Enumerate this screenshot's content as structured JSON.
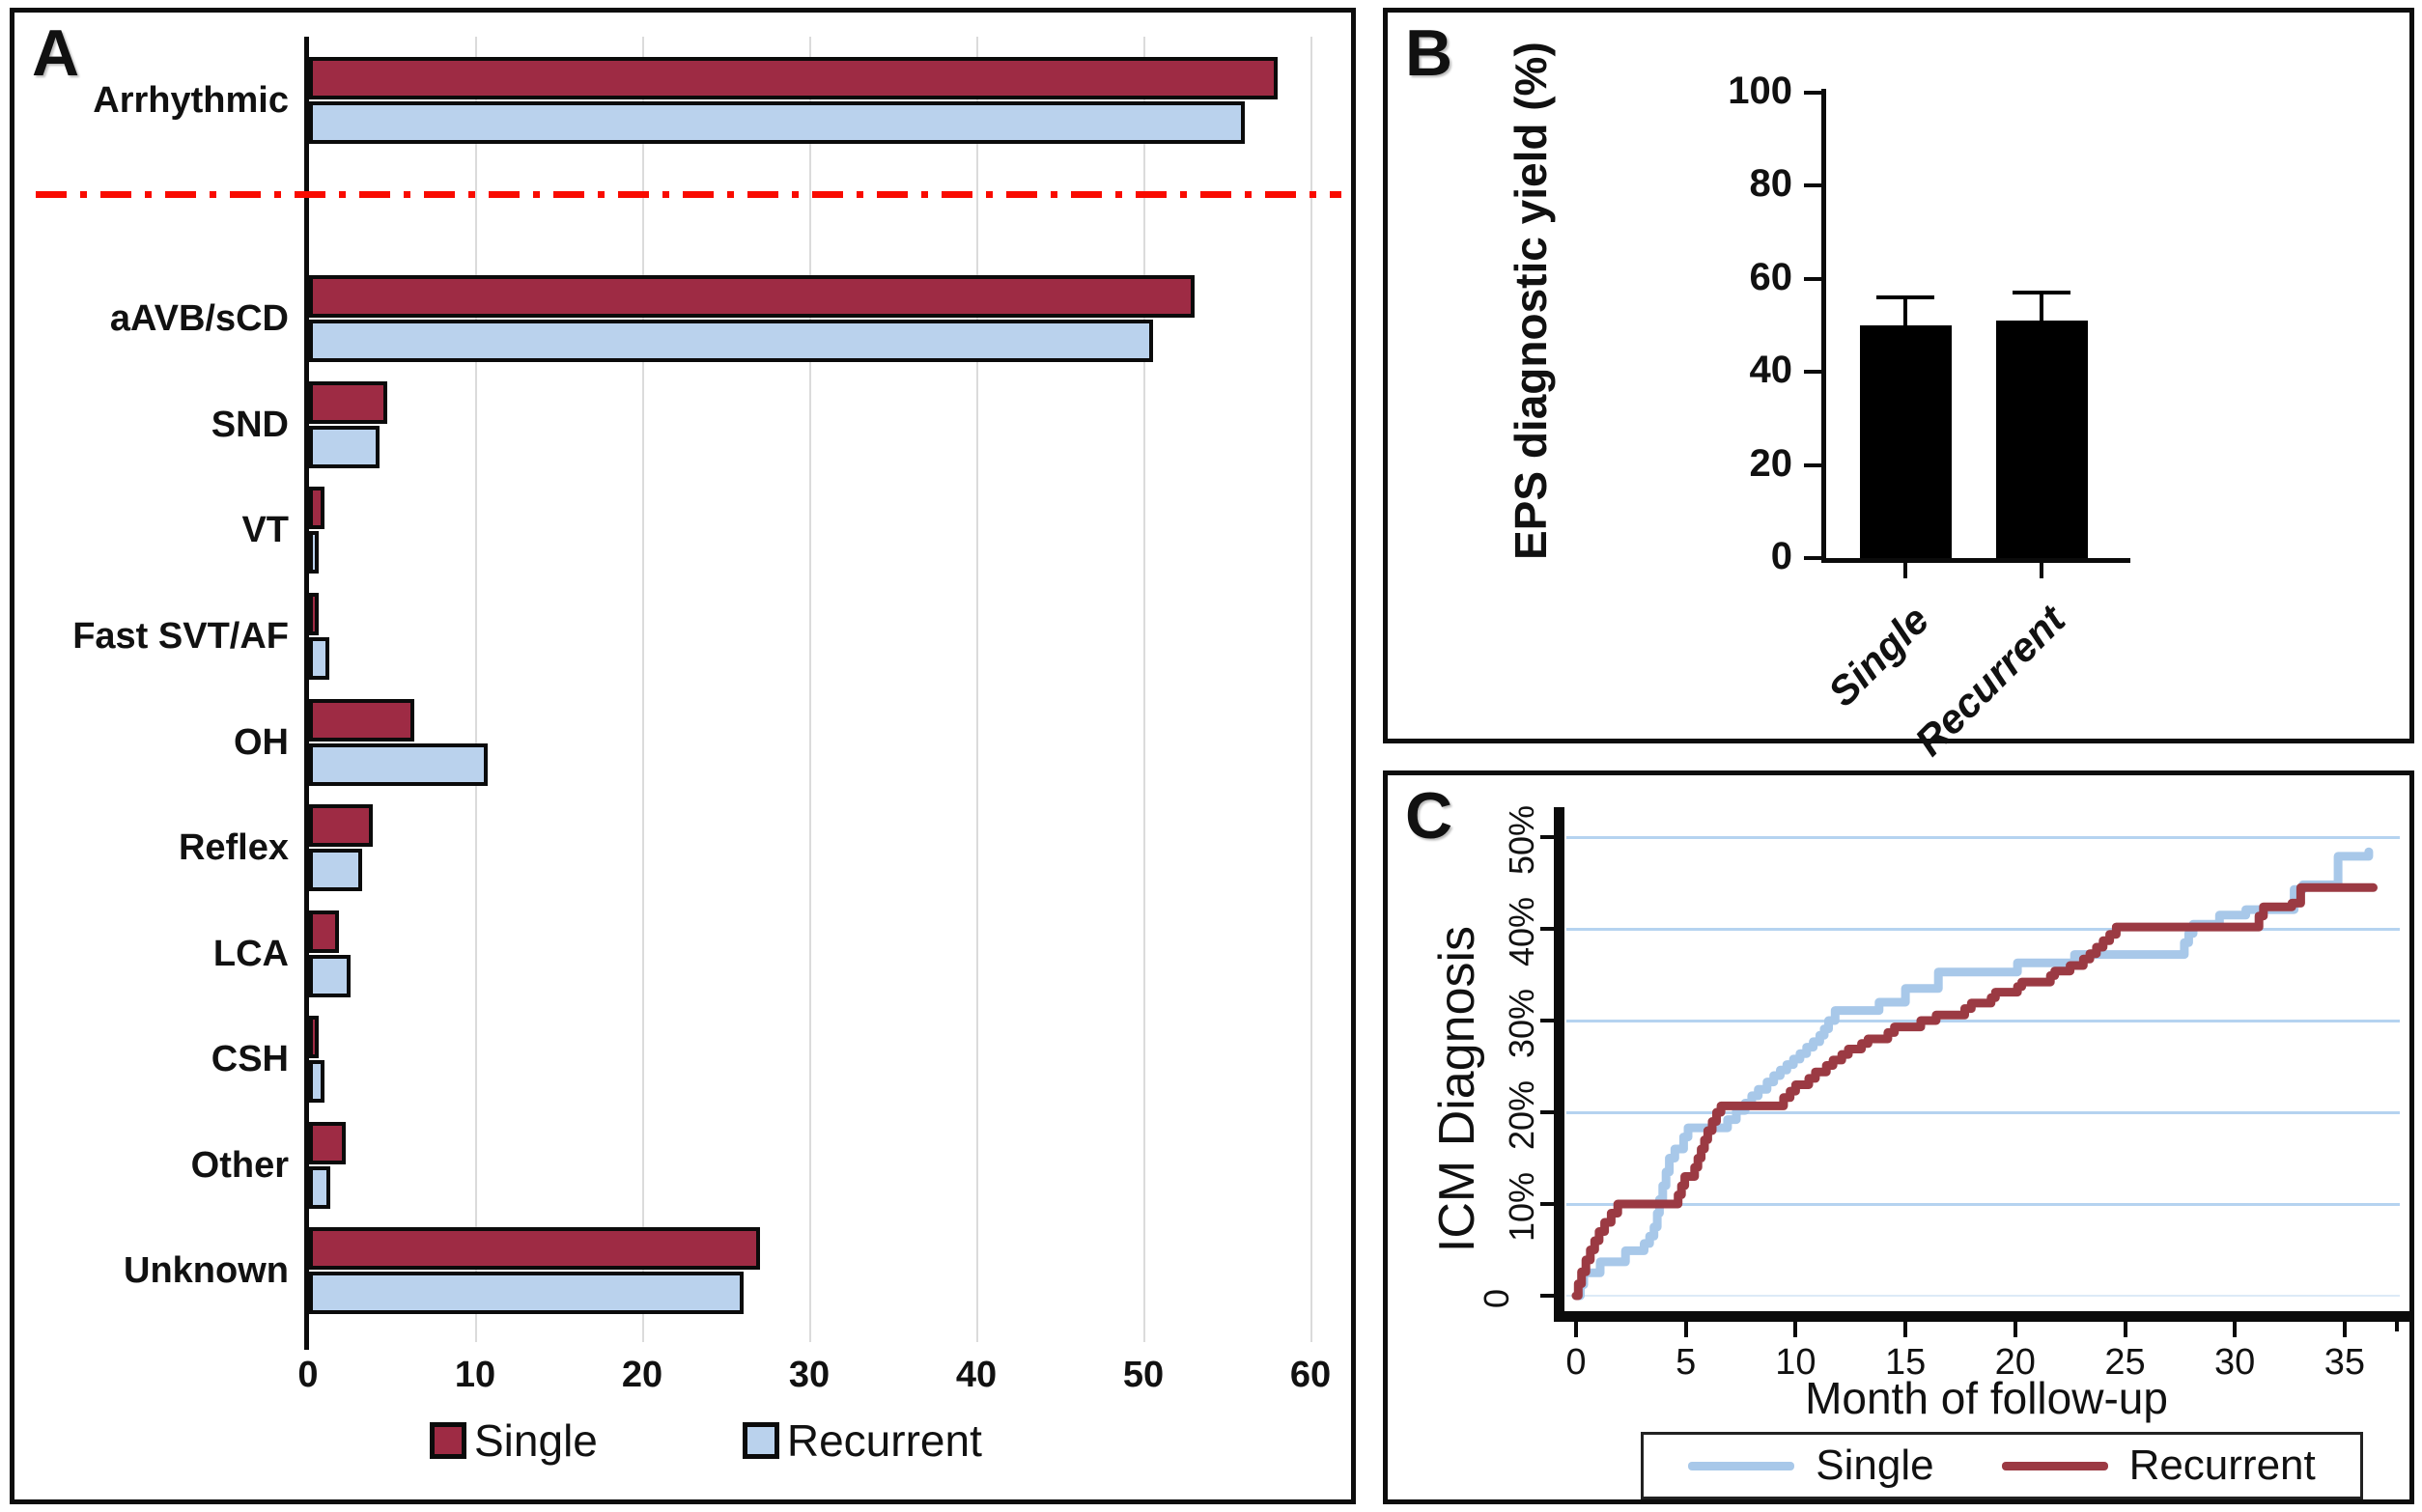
{
  "figure_title": "",
  "chart_data": [
    {
      "id": "A",
      "panel_label": "A",
      "type": "bar",
      "orientation": "horizontal",
      "categories": [
        "Arrhythmic",
        "aAVB/sCD",
        "SND",
        "VT",
        "Fast SVT/AF",
        "OH",
        "Reflex",
        "LCA",
        "CSH",
        "Other",
        "Unknown"
      ],
      "series": [
        {
          "name": "Single",
          "color": "#9E2B44",
          "values": [
            58,
            53,
            4.7,
            0.9,
            0.4,
            6.3,
            3.8,
            1.8,
            0.4,
            2.2,
            27
          ]
        },
        {
          "name": "Recurrent",
          "color": "#BAD2ED",
          "values": [
            56,
            50.5,
            4.2,
            0.5,
            1.2,
            10.7,
            3.2,
            2.5,
            0.9,
            1.3,
            26
          ]
        }
      ],
      "xlim": [
        0,
        60
      ],
      "x_ticks": [
        0,
        10,
        20,
        30,
        40,
        50,
        60
      ],
      "separator": {
        "after_category": "Arrhythmic",
        "color": "#f90b00",
        "style": "dash-dot"
      },
      "grid": "vertical-light-gray",
      "legend_position": "bottom",
      "legend_labels": [
        "Single",
        "Recurrent"
      ]
    },
    {
      "id": "B",
      "panel_label": "B",
      "type": "bar",
      "orientation": "vertical",
      "ylabel": "EPS diagnostic yield (%)",
      "categories": [
        "Single",
        "Recurrent"
      ],
      "values": [
        50,
        51
      ],
      "errors_plus": [
        6.5,
        6.5
      ],
      "bar_color": "#000000",
      "ylim": [
        0,
        100
      ],
      "y_ticks": [
        0,
        20,
        40,
        60,
        80,
        100
      ],
      "grid": "off"
    },
    {
      "id": "C",
      "panel_label": "C",
      "type": "line",
      "step": true,
      "ylabel": "ICM Diagnosis",
      "xlabel": "Month of follow-up",
      "ylim": [
        0,
        53
      ],
      "xlim": [
        -0.3,
        37.4
      ],
      "y_ticks": [
        0,
        10,
        20,
        30,
        40,
        50
      ],
      "y_tick_labels": [
        "0",
        "10%",
        "20%",
        "30%",
        "40%",
        "50%"
      ],
      "x_ticks": [
        0,
        5,
        10,
        15,
        20,
        25,
        30,
        35
      ],
      "grid": "horizontal-light-blue",
      "grid_color": "#b5d3f0",
      "legend_position": "bottom",
      "series": [
        {
          "name": "Single",
          "color": "#a8c8e9",
          "points": [
            [
              0,
              0
            ],
            [
              0.2,
              1.2
            ],
            [
              0.35,
              2.5
            ],
            [
              1.1,
              3.7
            ],
            [
              2.25,
              4.9
            ],
            [
              3.1,
              5.7
            ],
            [
              3.35,
              6.5
            ],
            [
              3.55,
              7.5
            ],
            [
              3.7,
              9
            ],
            [
              3.8,
              10.5
            ],
            [
              3.95,
              12
            ],
            [
              4.1,
              13.5
            ],
            [
              4.25,
              15
            ],
            [
              4.5,
              16
            ],
            [
              4.9,
              17.3
            ],
            [
              5.1,
              18.3
            ],
            [
              6.9,
              19.2
            ],
            [
              7.3,
              20.2
            ],
            [
              7.7,
              21
            ],
            [
              8,
              21.8
            ],
            [
              8.3,
              22.5
            ],
            [
              8.7,
              23.3
            ],
            [
              9,
              24
            ],
            [
              9.3,
              24.6
            ],
            [
              9.6,
              25.2
            ],
            [
              9.9,
              25.8
            ],
            [
              10.2,
              26.4
            ],
            [
              10.5,
              27.1
            ],
            [
              10.8,
              27.7
            ],
            [
              11.1,
              28.4
            ],
            [
              11.3,
              29.1
            ],
            [
              11.5,
              30
            ],
            [
              11.8,
              31.1
            ],
            [
              13.8,
              32
            ],
            [
              15,
              33.5
            ],
            [
              16.5,
              35.3
            ],
            [
              20.1,
              36.3
            ],
            [
              22.7,
              37.2
            ],
            [
              27.7,
              38.5
            ],
            [
              27.9,
              39.5
            ],
            [
              28.1,
              40.5
            ],
            [
              29.3,
              41.5
            ],
            [
              30.5,
              42.1
            ],
            [
              32.7,
              44.3
            ],
            [
              33.1,
              44.8
            ],
            [
              34.7,
              47.9
            ],
            [
              36.1,
              48.4
            ]
          ]
        },
        {
          "name": "Recurrent",
          "color": "#9b3a43",
          "points": [
            [
              0,
              0
            ],
            [
              0.1,
              1.3
            ],
            [
              0.25,
              2.6
            ],
            [
              0.45,
              3.9
            ],
            [
              0.65,
              5
            ],
            [
              0.85,
              6
            ],
            [
              1.05,
              7
            ],
            [
              1.3,
              8
            ],
            [
              1.6,
              9
            ],
            [
              1.9,
              10
            ],
            [
              4.5,
              10
            ],
            [
              4.65,
              11
            ],
            [
              4.8,
              12
            ],
            [
              4.95,
              13
            ],
            [
              5.4,
              14
            ],
            [
              5.55,
              15
            ],
            [
              5.7,
              16
            ],
            [
              5.85,
              17
            ],
            [
              6,
              18
            ],
            [
              6.2,
              19
            ],
            [
              6.4,
              20
            ],
            [
              6.6,
              20.7
            ],
            [
              9.3,
              20.7
            ],
            [
              9.45,
              21.6
            ],
            [
              9.75,
              22.3
            ],
            [
              10,
              23
            ],
            [
              10.6,
              23.7
            ],
            [
              10.9,
              24.4
            ],
            [
              11.4,
              25.1
            ],
            [
              11.7,
              25.7
            ],
            [
              12.1,
              26.3
            ],
            [
              12.4,
              26.9
            ],
            [
              13,
              27.5
            ],
            [
              13.3,
              28
            ],
            [
              14.2,
              28.7
            ],
            [
              14.5,
              29.3
            ],
            [
              15.7,
              30
            ],
            [
              16.4,
              30.6
            ],
            [
              17.7,
              31.3
            ],
            [
              18,
              31.9
            ],
            [
              18.9,
              32.5
            ],
            [
              19.1,
              33.1
            ],
            [
              20.1,
              33.7
            ],
            [
              20.3,
              34.2
            ],
            [
              21.6,
              34.9
            ],
            [
              21.8,
              35.4
            ],
            [
              22.5,
              36
            ],
            [
              23.1,
              36.7
            ],
            [
              23.4,
              37.3
            ],
            [
              23.7,
              38
            ],
            [
              24,
              38.7
            ],
            [
              24.3,
              39.4
            ],
            [
              24.6,
              40.2
            ],
            [
              30.9,
              40.2
            ],
            [
              31.1,
              41.4
            ],
            [
              31.3,
              42.4
            ],
            [
              32.6,
              42.8
            ],
            [
              33,
              44.5
            ],
            [
              36.3,
              44.5
            ]
          ]
        }
      ]
    }
  ]
}
